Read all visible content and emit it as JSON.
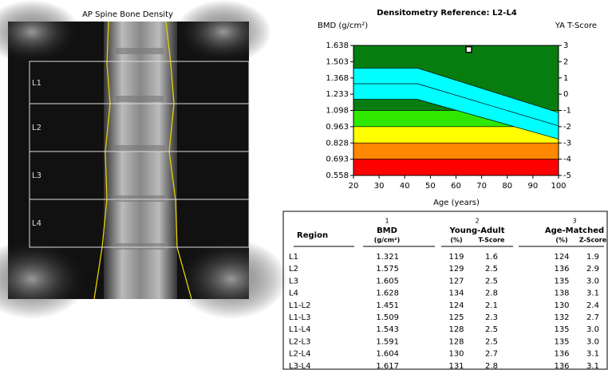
{
  "image": {
    "title": "AP Spine Bone Density",
    "regions": [
      "L1",
      "L2",
      "L3",
      "L4"
    ]
  },
  "chart_data": {
    "type": "scatter",
    "title": "Densitometry Reference: L2-L4",
    "y_label": "BMD (g/cm²)",
    "y2_label": "YA T-Score",
    "x_label": "Age (years)",
    "x": [
      65
    ],
    "values": [
      1.604
    ],
    "marker_color": "#ffffff",
    "xlim": [
      20,
      100
    ],
    "xticks": [
      20,
      30,
      40,
      50,
      60,
      70,
      80,
      90,
      100
    ],
    "ylim": [
      0.558,
      1.638
    ],
    "yticks": [
      1.638,
      1.503,
      1.368,
      1.233,
      1.098,
      0.963,
      0.828,
      0.693,
      0.558
    ],
    "y2lim": [
      -5,
      3
    ],
    "y2ticks": [
      3,
      2,
      1,
      0,
      -1,
      -2,
      -3,
      -4,
      -5
    ],
    "zones": [
      {
        "from": 1.098,
        "to": 1.638,
        "color": "#087d0f"
      },
      {
        "from": 0.963,
        "to": 1.098,
        "color": "#2ee800"
      },
      {
        "from": 0.828,
        "to": 0.963,
        "color": "#ffff00"
      },
      {
        "from": 0.693,
        "to": 0.828,
        "color": "#ff8800"
      },
      {
        "from": 0.558,
        "to": 0.693,
        "color": "#ff0000"
      }
    ],
    "reference": {
      "x": [
        20,
        45,
        100
      ],
      "upper": [
        1.45,
        1.45,
        1.08
      ],
      "mean": [
        1.32,
        1.32,
        0.97
      ],
      "lower": [
        1.19,
        1.19,
        0.86
      ],
      "color": "#00ffff"
    }
  },
  "table": {
    "header": {
      "region": "Region",
      "notes": [
        "1",
        "2",
        "3"
      ],
      "groups": [
        "BMD",
        "Young-Adult",
        "Age-Matched"
      ],
      "units": [
        "(g/cm²)",
        "(%)",
        "T-Score",
        "(%)",
        "Z-Score"
      ]
    },
    "rows": [
      [
        "L1",
        "1.321",
        "119",
        "1.6",
        "124",
        "1.9"
      ],
      [
        "L2",
        "1.575",
        "129",
        "2.5",
        "136",
        "2.9"
      ],
      [
        "L3",
        "1.605",
        "127",
        "2.5",
        "135",
        "3.0"
      ],
      [
        "L4",
        "1.628",
        "134",
        "2.8",
        "138",
        "3.1"
      ],
      [
        "L1-L2",
        "1.451",
        "124",
        "2.1",
        "130",
        "2.4"
      ],
      [
        "L1-L3",
        "1.509",
        "125",
        "2.3",
        "132",
        "2.7"
      ],
      [
        "L1-L4",
        "1.543",
        "128",
        "2.5",
        "135",
        "3.0"
      ],
      [
        "L2-L3",
        "1.591",
        "128",
        "2.5",
        "135",
        "3.0"
      ],
      [
        "L2-L4",
        "1.604",
        "130",
        "2.7",
        "136",
        "3.1"
      ],
      [
        "L3-L4",
        "1.617",
        "131",
        "2.8",
        "136",
        "3.1"
      ]
    ]
  }
}
